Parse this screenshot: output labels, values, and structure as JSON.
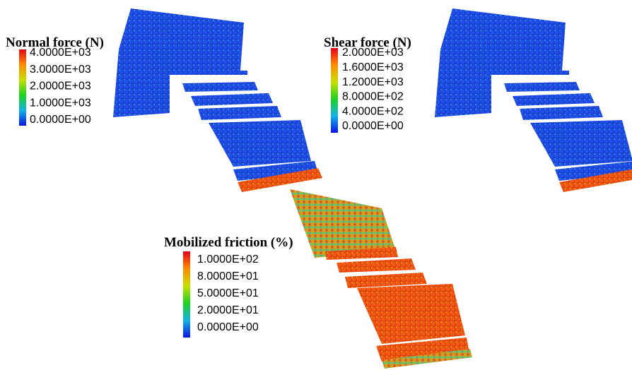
{
  "panels": [
    {
      "title": "Normal force (N)",
      "legend_labels": [
        "4.0000E+03",
        "3.0000E+03",
        "2.0000E+03",
        "1.0000E+03",
        "0.0000E+00"
      ]
    },
    {
      "title": "Shear force (N)",
      "legend_labels": [
        "2.0000E+03",
        "1.6000E+03",
        "1.2000E+03",
        "8.0000E+02",
        "4.0000E+02",
        "0.0000E+00"
      ]
    },
    {
      "title": "Mobilized friction (%)",
      "legend_labels": [
        "1.0000E+02",
        "8.0000E+01",
        "5.0000E+01",
        "2.0000E+01",
        "0.0000E+00"
      ]
    }
  ]
}
